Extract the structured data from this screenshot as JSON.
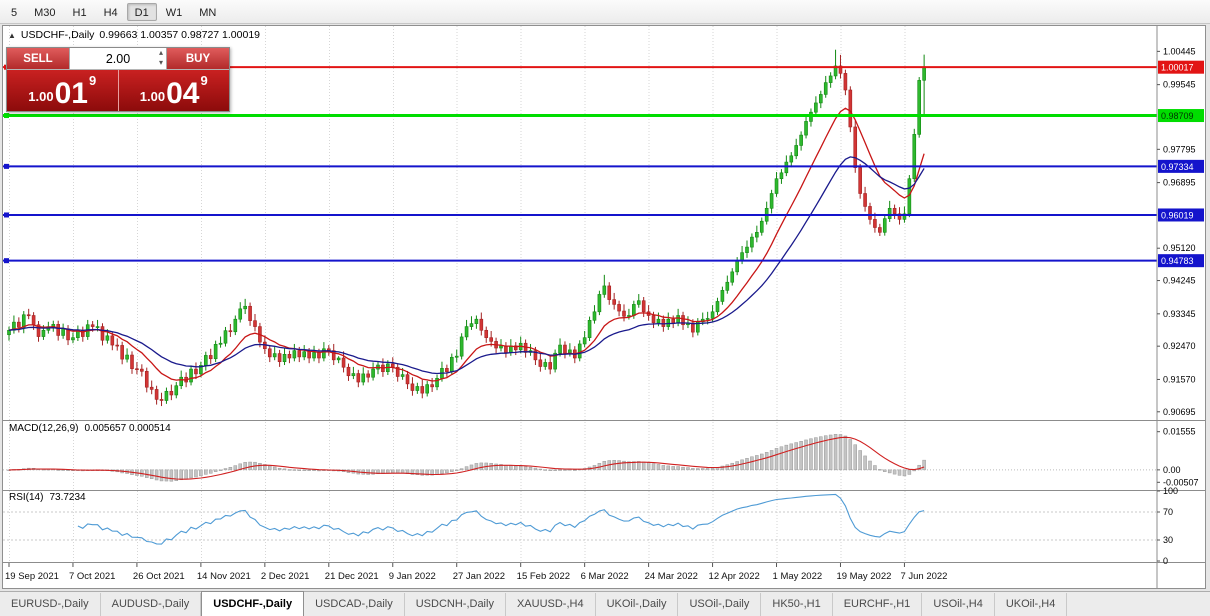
{
  "toolbar": {
    "timeframes": [
      "5",
      "M30",
      "H1",
      "H4",
      "D1",
      "W1",
      "MN"
    ],
    "active_index": 4
  },
  "chart_header": {
    "collapse_icon": "▲",
    "symbol_period": "USDCHF-,Daily",
    "ohlc": "0.99663 1.00357 0.98727 1.00019"
  },
  "trade_panel": {
    "sell_label": "SELL",
    "buy_label": "BUY",
    "volume": "2.00",
    "bid": {
      "prefix": "1.00",
      "pips": "01",
      "sup": "9"
    },
    "ask": {
      "prefix": "1.00",
      "pips": "04",
      "sup": "9"
    }
  },
  "tabs": {
    "active_index": 2,
    "items": [
      "EURUSD-,Daily",
      "AUDUSD-,Daily",
      "USDCHF-,Daily",
      "USDCAD-,Daily",
      "USDCNH-,Daily",
      "XAUUSD-,H4",
      "UKOil-,Daily",
      "USOil-,Daily",
      "HK50-,H1",
      "EURCHF-,H1",
      "USOil-,H4",
      "UKOil-,H4"
    ]
  },
  "chart_data": {
    "type": "candlestick",
    "symbol": "USDCHF-",
    "period": "Daily",
    "colors": {
      "bull": "#128912",
      "bull_fill": "#2eb82e",
      "bear": "#a32222",
      "bear_fill": "#d23535",
      "grid": "#d6d6d6",
      "axis_text": "#000000"
    },
    "price_axis": {
      "min": 0.905,
      "max": 1.0105,
      "ticks": [
        [
          "1.00445",
          1.00445
        ],
        [
          "0.99545",
          0.99545
        ],
        [
          "0.97795",
          0.97795
        ],
        [
          "0.96895",
          0.96895
        ],
        [
          "0.95120",
          0.9512
        ],
        [
          "0.94245",
          0.94245
        ],
        [
          "0.93345",
          0.93345
        ],
        [
          "0.92470",
          0.9247
        ],
        [
          "0.91570",
          0.9157
        ],
        [
          "0.90695",
          0.90695
        ]
      ]
    },
    "levels": [
      {
        "label": "1.00017",
        "value": 1.00017,
        "color": "#e21414",
        "text": "#ffffff",
        "width": 2
      },
      {
        "label": "0.98709",
        "value": 0.98709,
        "color": "#00dd00",
        "text": "#003300",
        "width": 3
      },
      {
        "label": "0.97334",
        "value": 0.97334,
        "color": "#1414cc",
        "text": "#ffffff",
        "width": 2
      },
      {
        "label": "0.96019",
        "value": 0.96019,
        "color": "#1414cc",
        "text": "#ffffff",
        "width": 2
      },
      {
        "label": "0.94783",
        "value": 0.94783,
        "color": "#1414cc",
        "text": "#ffffff",
        "width": 2
      }
    ],
    "overlays": [
      {
        "name": "ma-fast",
        "period": 12,
        "color": "#c81616"
      },
      {
        "name": "ma-slow",
        "period": 26,
        "color": "#1a1a8c"
      }
    ],
    "x_labels": [
      [
        "19 Sep 2021",
        0
      ],
      [
        "7 Oct 2021",
        13
      ],
      [
        "26 Oct 2021",
        26
      ],
      [
        "14 Nov 2021",
        39
      ],
      [
        "2 Dec 2021",
        52
      ],
      [
        "21 Dec 2021",
        65
      ],
      [
        "9 Jan 2022",
        78
      ],
      [
        "27 Jan 2022",
        91
      ],
      [
        "15 Feb 2022",
        104
      ],
      [
        "6 Mar 2022",
        117
      ],
      [
        "24 Mar 2022",
        130
      ],
      [
        "12 Apr 2022",
        143
      ],
      [
        "1 May 2022",
        156
      ],
      [
        "19 May 2022",
        169
      ],
      [
        "7 Jun 2022",
        182
      ]
    ],
    "macd": {
      "label": "MACD(12,26,9)",
      "display": "0.005657 0.000514",
      "fast": 12,
      "slow": 26,
      "signal_period": 9,
      "range": [
        -0.0078,
        0.0195
      ],
      "axis": [
        [
          "0.01555",
          0.01555
        ],
        [
          "0.00",
          0
        ],
        [
          "-0.00507",
          -0.00507
        ]
      ],
      "hist_color": "#c4c4c4",
      "hist_stroke": "#9a9a9a",
      "signal_color": "#d02020"
    },
    "rsi": {
      "label": "RSI(14)",
      "display": "73.7234",
      "period": 14,
      "range": [
        0,
        100
      ],
      "axis": [
        [
          "100",
          100
        ],
        [
          "70",
          70
        ],
        [
          "30",
          30
        ],
        [
          "0",
          0
        ]
      ],
      "levels": [
        70,
        30
      ],
      "color": "#4f9bd5"
    },
    "candles": [
      [
        0.9278,
        0.93,
        0.9262,
        0.929
      ],
      [
        0.929,
        0.933,
        0.9281,
        0.9312
      ],
      [
        0.9312,
        0.9325,
        0.9284,
        0.9298
      ],
      [
        0.9298,
        0.9342,
        0.9282,
        0.9332
      ],
      [
        0.9332,
        0.9348,
        0.932,
        0.933
      ],
      [
        0.933,
        0.9339,
        0.9291,
        0.9305
      ],
      [
        0.9305,
        0.9315,
        0.9259,
        0.9273
      ],
      [
        0.9273,
        0.9304,
        0.9264,
        0.929
      ],
      [
        0.929,
        0.9313,
        0.9281,
        0.93
      ],
      [
        0.93,
        0.9316,
        0.9286,
        0.9306
      ],
      [
        0.9306,
        0.9316,
        0.9262,
        0.9276
      ],
      [
        0.9276,
        0.9308,
        0.9267,
        0.9294
      ],
      [
        0.9294,
        0.9304,
        0.925,
        0.9264
      ],
      [
        0.9264,
        0.9284,
        0.9255,
        0.927
      ],
      [
        0.927,
        0.9303,
        0.9261,
        0.929
      ],
      [
        0.929,
        0.93,
        0.9259,
        0.9273
      ],
      [
        0.9273,
        0.9318,
        0.9264,
        0.9305
      ],
      [
        0.9305,
        0.9315,
        0.9286,
        0.93
      ],
      [
        0.93,
        0.9318,
        0.9287,
        0.93
      ],
      [
        0.93,
        0.9309,
        0.9249,
        0.9263
      ],
      [
        0.9263,
        0.9293,
        0.9254,
        0.9275
      ],
      [
        0.9275,
        0.9285,
        0.9236,
        0.925
      ],
      [
        0.925,
        0.9268,
        0.9235,
        0.9249
      ],
      [
        0.9249,
        0.9259,
        0.9198,
        0.9212
      ],
      [
        0.9212,
        0.9241,
        0.9203,
        0.9223
      ],
      [
        0.9223,
        0.9233,
        0.9172,
        0.9186
      ],
      [
        0.9186,
        0.9204,
        0.9171,
        0.9185
      ],
      [
        0.9185,
        0.9198,
        0.9165,
        0.9179
      ],
      [
        0.9179,
        0.9189,
        0.9122,
        0.9136
      ],
      [
        0.9136,
        0.9154,
        0.9117,
        0.913
      ],
      [
        0.913,
        0.914,
        0.9089,
        0.9103
      ],
      [
        0.9103,
        0.9121,
        0.9085,
        0.91
      ],
      [
        0.91,
        0.9135,
        0.9091,
        0.9125
      ],
      [
        0.9125,
        0.9143,
        0.9101,
        0.9115
      ],
      [
        0.9115,
        0.915,
        0.9106,
        0.914
      ],
      [
        0.914,
        0.9181,
        0.9131,
        0.9163
      ],
      [
        0.9163,
        0.9176,
        0.9136,
        0.915
      ],
      [
        0.915,
        0.9195,
        0.9141,
        0.9185
      ],
      [
        0.9185,
        0.9203,
        0.9158,
        0.9172
      ],
      [
        0.9172,
        0.9205,
        0.9163,
        0.9195
      ],
      [
        0.9195,
        0.9232,
        0.9181,
        0.9222
      ],
      [
        0.9222,
        0.924,
        0.9199,
        0.9213
      ],
      [
        0.9213,
        0.9262,
        0.9204,
        0.9252
      ],
      [
        0.9252,
        0.9273,
        0.9243,
        0.9255
      ],
      [
        0.9255,
        0.9299,
        0.9246,
        0.9289
      ],
      [
        0.9289,
        0.9307,
        0.9272,
        0.9286
      ],
      [
        0.9286,
        0.933,
        0.9277,
        0.932
      ],
      [
        0.932,
        0.9366,
        0.9311,
        0.9348
      ],
      [
        0.9348,
        0.9375,
        0.9334,
        0.9355
      ],
      [
        0.9355,
        0.9365,
        0.9302,
        0.9316
      ],
      [
        0.9316,
        0.9334,
        0.9287,
        0.93
      ],
      [
        0.93,
        0.931,
        0.9244,
        0.9258
      ],
      [
        0.9258,
        0.9276,
        0.9226,
        0.924
      ],
      [
        0.924,
        0.925,
        0.9204,
        0.9218
      ],
      [
        0.9218,
        0.9245,
        0.9209,
        0.9227
      ],
      [
        0.9227,
        0.9237,
        0.9191,
        0.9205
      ],
      [
        0.9205,
        0.9243,
        0.9196,
        0.9225
      ],
      [
        0.9225,
        0.9235,
        0.9201,
        0.9215
      ],
      [
        0.9215,
        0.9253,
        0.9206,
        0.9235
      ],
      [
        0.9235,
        0.9245,
        0.9204,
        0.9218
      ],
      [
        0.9218,
        0.925,
        0.9209,
        0.9232
      ],
      [
        0.9232,
        0.9242,
        0.9201,
        0.9215
      ],
      [
        0.9215,
        0.9248,
        0.9206,
        0.923
      ],
      [
        0.923,
        0.924,
        0.9201,
        0.9215
      ],
      [
        0.9215,
        0.9258,
        0.9206,
        0.924
      ],
      [
        0.924,
        0.925,
        0.9221,
        0.9235
      ],
      [
        0.9235,
        0.9253,
        0.9196,
        0.921
      ],
      [
        0.921,
        0.922,
        0.9201,
        0.9215
      ],
      [
        0.9215,
        0.9233,
        0.9176,
        0.919
      ],
      [
        0.919,
        0.92,
        0.9153,
        0.9167
      ],
      [
        0.9167,
        0.9191,
        0.9158,
        0.9173
      ],
      [
        0.9173,
        0.9183,
        0.9136,
        0.915
      ],
      [
        0.915,
        0.919,
        0.9141,
        0.9172
      ],
      [
        0.9172,
        0.9182,
        0.9149,
        0.9163
      ],
      [
        0.9163,
        0.9203,
        0.9154,
        0.9185
      ],
      [
        0.9185,
        0.9206,
        0.9171,
        0.9196
      ],
      [
        0.9196,
        0.9214,
        0.9164,
        0.9178
      ],
      [
        0.9178,
        0.9209,
        0.9169,
        0.9199
      ],
      [
        0.9199,
        0.9217,
        0.9176,
        0.919
      ],
      [
        0.919,
        0.92,
        0.9151,
        0.9165
      ],
      [
        0.9165,
        0.9188,
        0.9156,
        0.917
      ],
      [
        0.917,
        0.918,
        0.9131,
        0.9145
      ],
      [
        0.9145,
        0.9163,
        0.9113,
        0.9127
      ],
      [
        0.9127,
        0.9148,
        0.9118,
        0.9138
      ],
      [
        0.9138,
        0.9156,
        0.9106,
        0.912
      ],
      [
        0.912,
        0.9153,
        0.9111,
        0.9143
      ],
      [
        0.9143,
        0.9161,
        0.9123,
        0.9137
      ],
      [
        0.9137,
        0.917,
        0.9128,
        0.916
      ],
      [
        0.916,
        0.9205,
        0.9151,
        0.9187
      ],
      [
        0.9187,
        0.9197,
        0.9164,
        0.9178
      ],
      [
        0.9178,
        0.9227,
        0.9169,
        0.9217
      ],
      [
        0.9217,
        0.9238,
        0.9203,
        0.922
      ],
      [
        0.922,
        0.9282,
        0.9211,
        0.9272
      ],
      [
        0.9272,
        0.9318,
        0.9263,
        0.93
      ],
      [
        0.93,
        0.9328,
        0.9291,
        0.9308
      ],
      [
        0.9308,
        0.933,
        0.9294,
        0.932
      ],
      [
        0.932,
        0.9338,
        0.9276,
        0.929
      ],
      [
        0.929,
        0.93,
        0.9256,
        0.927
      ],
      [
        0.927,
        0.9288,
        0.9246,
        0.926
      ],
      [
        0.926,
        0.927,
        0.9228,
        0.9242
      ],
      [
        0.9242,
        0.9266,
        0.9233,
        0.9248
      ],
      [
        0.9248,
        0.9258,
        0.9216,
        0.923
      ],
      [
        0.923,
        0.9266,
        0.9221,
        0.9248
      ],
      [
        0.9248,
        0.9258,
        0.9223,
        0.9237
      ],
      [
        0.9237,
        0.9273,
        0.9228,
        0.9255
      ],
      [
        0.9255,
        0.9265,
        0.9216,
        0.923
      ],
      [
        0.923,
        0.9253,
        0.9221,
        0.9235
      ],
      [
        0.9235,
        0.9245,
        0.9196,
        0.921
      ],
      [
        0.921,
        0.9228,
        0.9178,
        0.9192
      ],
      [
        0.9192,
        0.9213,
        0.9183,
        0.9203
      ],
      [
        0.9203,
        0.9221,
        0.9171,
        0.9185
      ],
      [
        0.9185,
        0.9238,
        0.9176,
        0.9228
      ],
      [
        0.9228,
        0.9268,
        0.9219,
        0.925
      ],
      [
        0.925,
        0.926,
        0.9214,
        0.9228
      ],
      [
        0.9228,
        0.9255,
        0.9219,
        0.9237
      ],
      [
        0.9237,
        0.9247,
        0.9201,
        0.9215
      ],
      [
        0.9215,
        0.9263,
        0.9206,
        0.9253
      ],
      [
        0.9253,
        0.9288,
        0.9244,
        0.927
      ],
      [
        0.927,
        0.9327,
        0.9261,
        0.9317
      ],
      [
        0.9317,
        0.9358,
        0.9308,
        0.934
      ],
      [
        0.934,
        0.9397,
        0.9331,
        0.9387
      ],
      [
        0.9387,
        0.944,
        0.9378,
        0.941
      ],
      [
        0.941,
        0.942,
        0.9359,
        0.9373
      ],
      [
        0.9373,
        0.9391,
        0.9346,
        0.936
      ],
      [
        0.936,
        0.937,
        0.9328,
        0.9342
      ],
      [
        0.9342,
        0.936,
        0.9314,
        0.9328
      ],
      [
        0.9328,
        0.9348,
        0.9319,
        0.933
      ],
      [
        0.933,
        0.937,
        0.9321,
        0.936
      ],
      [
        0.936,
        0.9388,
        0.9351,
        0.937
      ],
      [
        0.937,
        0.938,
        0.9326,
        0.934
      ],
      [
        0.934,
        0.9358,
        0.9316,
        0.933
      ],
      [
        0.933,
        0.934,
        0.9296,
        0.931
      ],
      [
        0.931,
        0.9338,
        0.9301,
        0.932
      ],
      [
        0.932,
        0.933,
        0.9286,
        0.93
      ],
      [
        0.93,
        0.9338,
        0.9291,
        0.932
      ],
      [
        0.932,
        0.933,
        0.9296,
        0.931
      ],
      [
        0.931,
        0.9348,
        0.9301,
        0.933
      ],
      [
        0.933,
        0.934,
        0.9291,
        0.9305
      ],
      [
        0.9305,
        0.9328,
        0.9296,
        0.931
      ],
      [
        0.931,
        0.932,
        0.9271,
        0.9285
      ],
      [
        0.9285,
        0.9323,
        0.9276,
        0.9313
      ],
      [
        0.9313,
        0.9338,
        0.9304,
        0.932
      ],
      [
        0.932,
        0.934,
        0.9306,
        0.9322
      ],
      [
        0.9322,
        0.9358,
        0.9313,
        0.934
      ],
      [
        0.934,
        0.9378,
        0.9331,
        0.9368
      ],
      [
        0.9368,
        0.9408,
        0.9359,
        0.9398
      ],
      [
        0.9398,
        0.9438,
        0.9389,
        0.942
      ],
      [
        0.942,
        0.9458,
        0.9411,
        0.9448
      ],
      [
        0.9448,
        0.9488,
        0.9439,
        0.9478
      ],
      [
        0.9478,
        0.9518,
        0.9469,
        0.95
      ],
      [
        0.95,
        0.9533,
        0.9486,
        0.9515
      ],
      [
        0.9515,
        0.9552,
        0.9501,
        0.9542
      ],
      [
        0.9542,
        0.9573,
        0.9528,
        0.9555
      ],
      [
        0.9555,
        0.9595,
        0.9546,
        0.9585
      ],
      [
        0.9585,
        0.9638,
        0.9576,
        0.962
      ],
      [
        0.962,
        0.967,
        0.9606,
        0.966
      ],
      [
        0.966,
        0.9718,
        0.9651,
        0.97
      ],
      [
        0.97,
        0.9726,
        0.9686,
        0.9716
      ],
      [
        0.9716,
        0.9763,
        0.9707,
        0.9745
      ],
      [
        0.9745,
        0.9772,
        0.9731,
        0.9762
      ],
      [
        0.9762,
        0.9808,
        0.9753,
        0.979
      ],
      [
        0.979,
        0.9828,
        0.9776,
        0.9818
      ],
      [
        0.9818,
        0.9873,
        0.9809,
        0.9855
      ],
      [
        0.9855,
        0.989,
        0.9841,
        0.988
      ],
      [
        0.988,
        0.9923,
        0.9871,
        0.9905
      ],
      [
        0.9905,
        0.9938,
        0.9891,
        0.9928
      ],
      [
        0.9928,
        0.9978,
        0.9919,
        0.996
      ],
      [
        0.996,
        0.9988,
        0.9946,
        0.9978
      ],
      [
        0.9978,
        1.0049,
        0.9969,
        1.0005
      ],
      [
        1.0005,
        1.0035,
        0.9971,
        0.9985
      ],
      [
        0.9985,
        0.9995,
        0.9926,
        0.994
      ],
      [
        0.994,
        0.995,
        0.9826,
        0.984
      ],
      [
        0.984,
        0.9858,
        0.9716,
        0.973
      ],
      [
        0.973,
        0.974,
        0.9646,
        0.966
      ],
      [
        0.966,
        0.9678,
        0.9611,
        0.9625
      ],
      [
        0.9625,
        0.9635,
        0.9576,
        0.959
      ],
      [
        0.959,
        0.9608,
        0.9554,
        0.9568
      ],
      [
        0.9568,
        0.9578,
        0.9545,
        0.9555
      ],
      [
        0.9555,
        0.9602,
        0.9546,
        0.9592
      ],
      [
        0.9592,
        0.964,
        0.9583,
        0.962
      ],
      [
        0.962,
        0.963,
        0.9591,
        0.9605
      ],
      [
        0.9605,
        0.9623,
        0.9576,
        0.959
      ],
      [
        0.959,
        0.9625,
        0.9581,
        0.9605
      ],
      [
        0.9605,
        0.971,
        0.9596,
        0.97
      ],
      [
        0.97,
        0.9835,
        0.9691,
        0.982
      ],
      [
        0.982,
        0.9975,
        0.9811,
        0.9966
      ],
      [
        0.99663,
        1.00357,
        0.98727,
        1.00019
      ]
    ]
  }
}
